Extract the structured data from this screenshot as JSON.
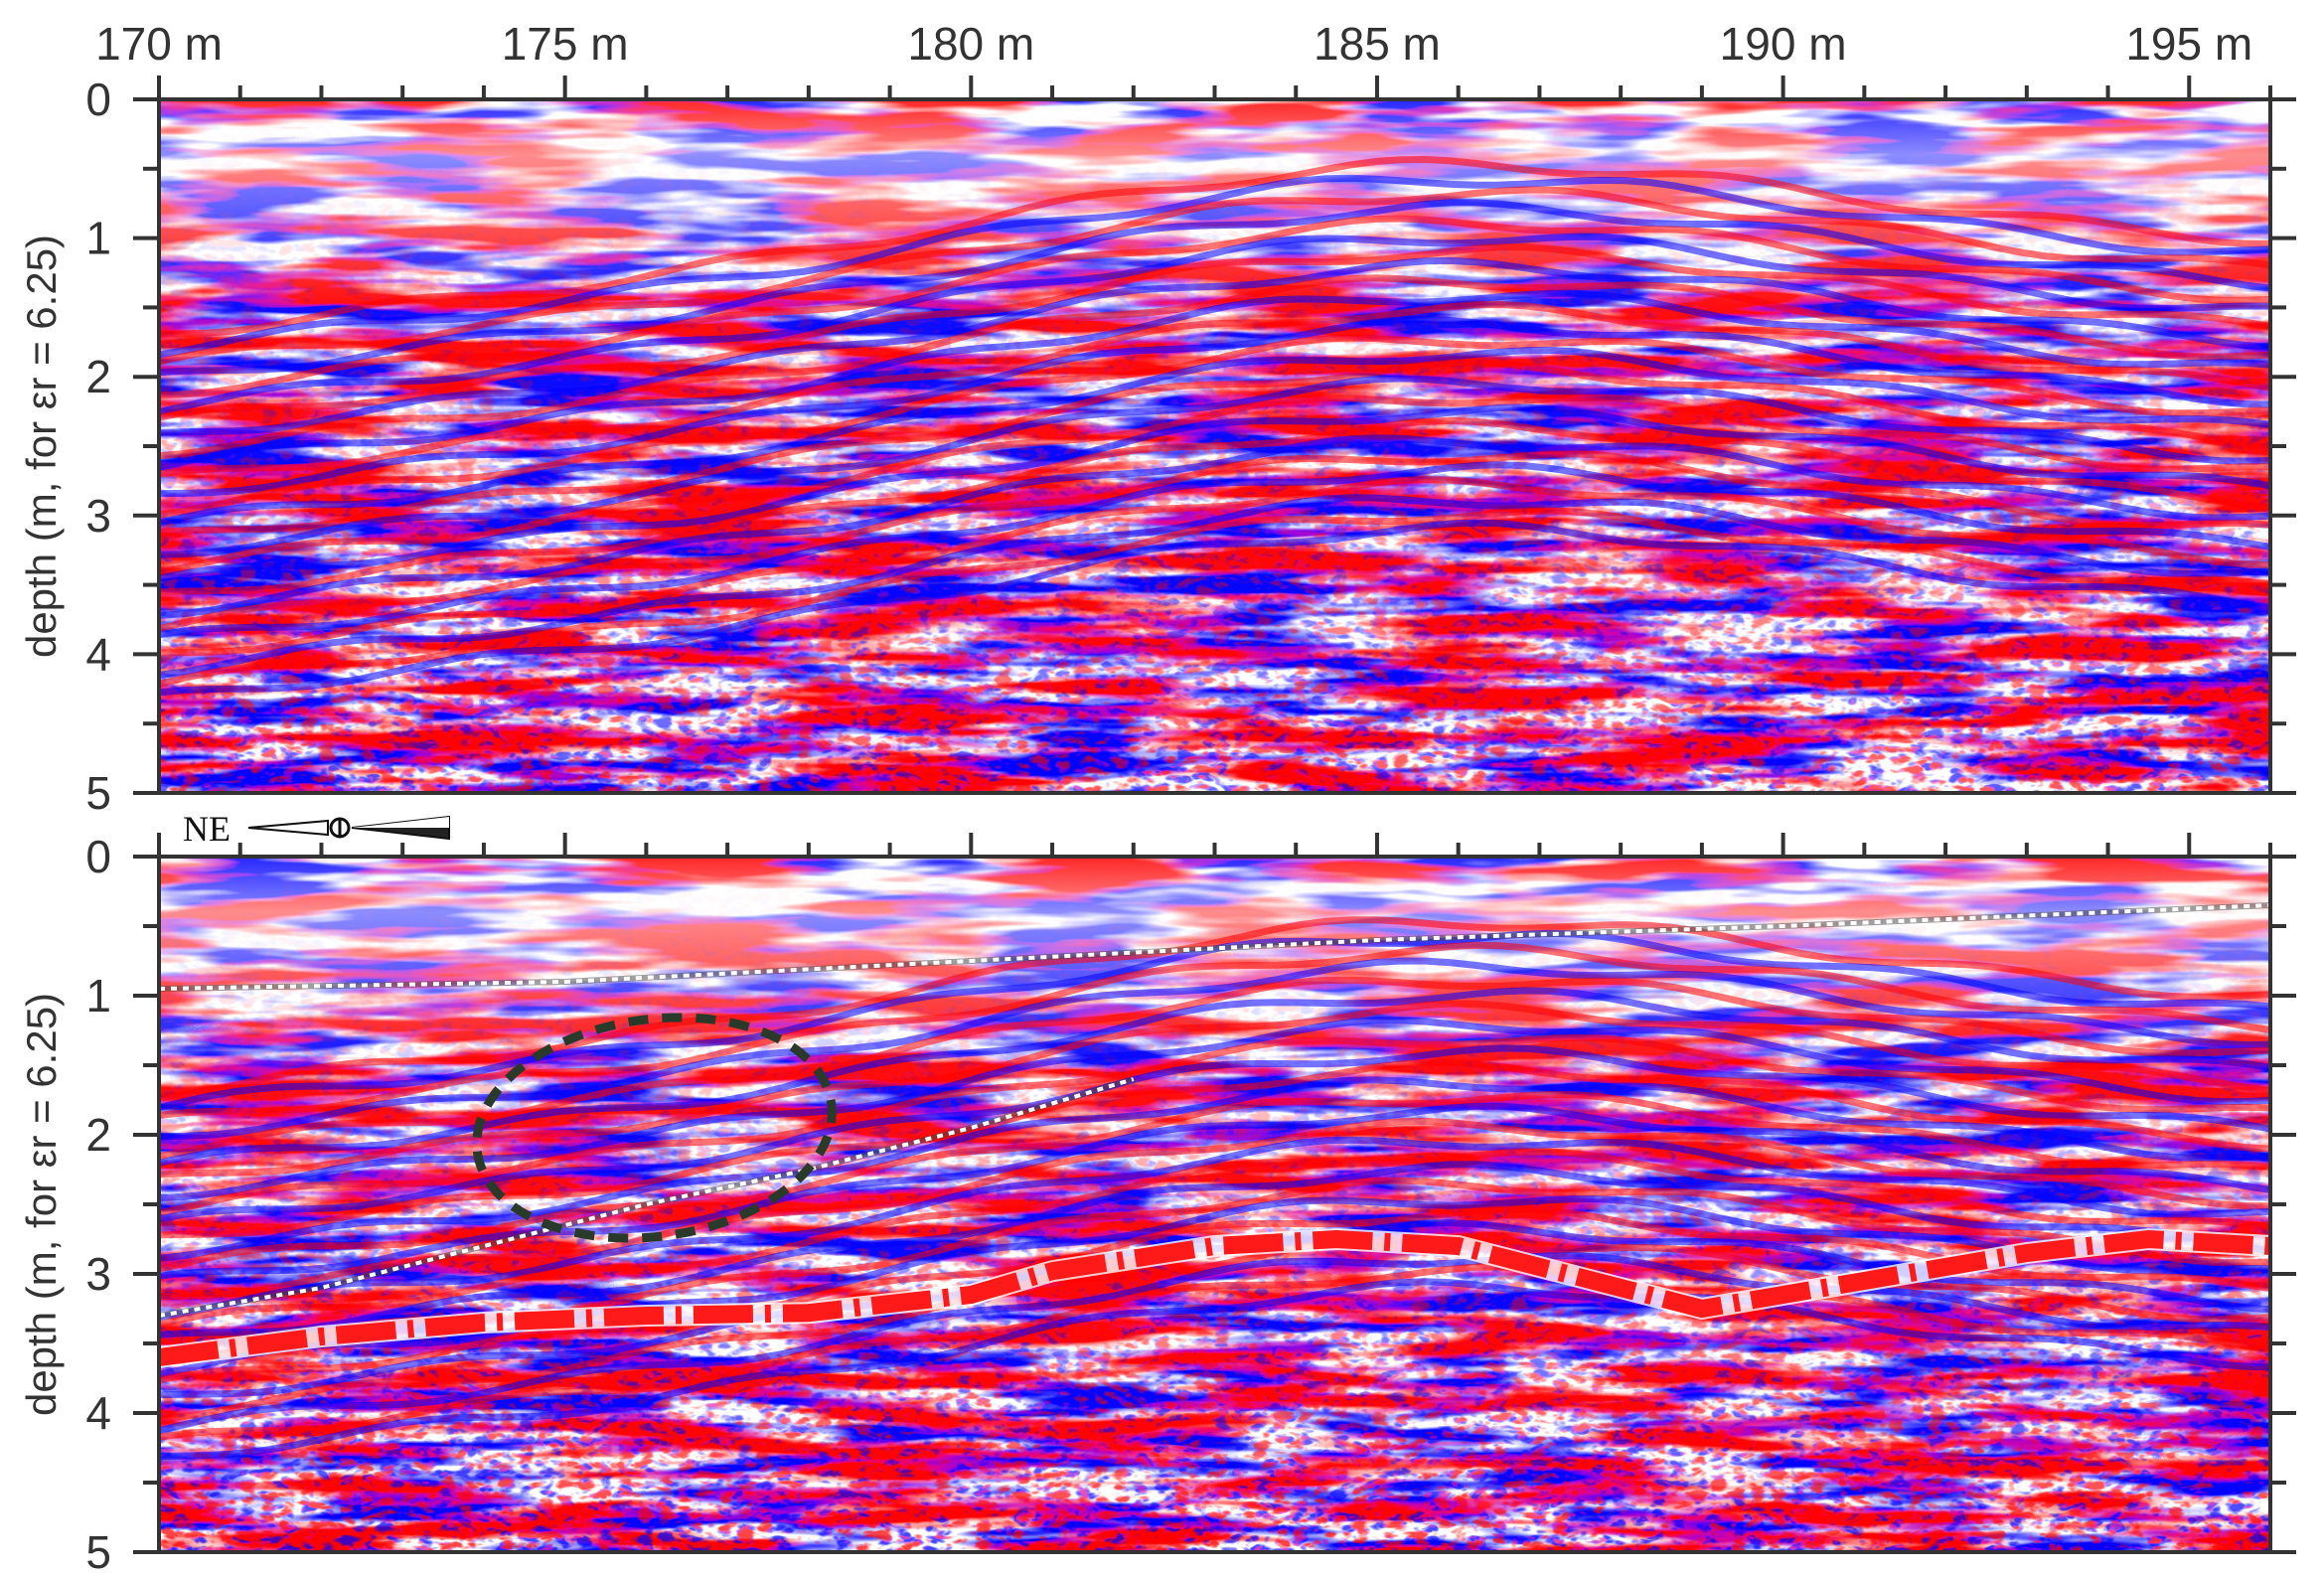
{
  "figure": {
    "x_axis": {
      "range": [
        170,
        196
      ],
      "ticks": [
        {
          "value": 170,
          "label": "170 m"
        },
        {
          "value": 175,
          "label": "175 m"
        },
        {
          "value": 180,
          "label": "180 m"
        },
        {
          "value": 185,
          "label": "185 m"
        },
        {
          "value": 190,
          "label": "190 m"
        },
        {
          "value": 195,
          "label": "195 m"
        }
      ]
    },
    "panels": [
      {
        "id": "top",
        "ylabel": "depth (m, for εr = 6.25)",
        "y_range": [
          0,
          5
        ],
        "y_ticks": [
          0,
          1,
          2,
          3,
          4,
          5
        ],
        "annotations": []
      },
      {
        "id": "bottom",
        "ylabel": "depth (m, for εr = 6.25)",
        "y_range": [
          0,
          5
        ],
        "y_ticks": [
          0,
          1,
          2,
          3,
          4,
          5
        ],
        "annotations": [
          {
            "type": "interpreted-reflector-dotted",
            "color": "#ffffff",
            "points": [
              [
                170,
                0.95
              ],
              [
                175,
                0.9
              ],
              [
                180,
                0.75
              ],
              [
                185,
                0.6
              ],
              [
                190,
                0.5
              ],
              [
                196,
                0.35
              ]
            ]
          },
          {
            "type": "interpreted-reflector-dotted",
            "color": "#ffffff",
            "points": [
              [
                170,
                3.3
              ],
              [
                172,
                3.1
              ],
              [
                174,
                2.8
              ],
              [
                176,
                2.5
              ],
              [
                178,
                2.25
              ],
              [
                180,
                1.95
              ],
              [
                182,
                1.6
              ]
            ]
          },
          {
            "type": "interpreted-reflector-dashed-thick",
            "color": "#ff1a1a",
            "points": [
              [
                170,
                3.6
              ],
              [
                172,
                3.45
              ],
              [
                174,
                3.35
              ],
              [
                176,
                3.3
              ],
              [
                178,
                3.28
              ],
              [
                180,
                3.15
              ],
              [
                181,
                2.98
              ],
              [
                183,
                2.8
              ],
              [
                184.5,
                2.75
              ],
              [
                186,
                2.8
              ],
              [
                188,
                3.1
              ],
              [
                189,
                3.25
              ],
              [
                191,
                3.05
              ],
              [
                193,
                2.85
              ],
              [
                194.5,
                2.75
              ],
              [
                196,
                2.8
              ]
            ]
          },
          {
            "type": "ellipse-dashed",
            "color": "#2a3a2a",
            "center": [
              176.1,
              1.95
            ],
            "rx": 2.2,
            "ry": 0.78
          }
        ]
      }
    ],
    "compass": {
      "label": "NE"
    },
    "colors": {
      "positive": "#ff0000",
      "negative": "#0000ff",
      "zero": "#ffffff",
      "frame": "#333333"
    }
  }
}
